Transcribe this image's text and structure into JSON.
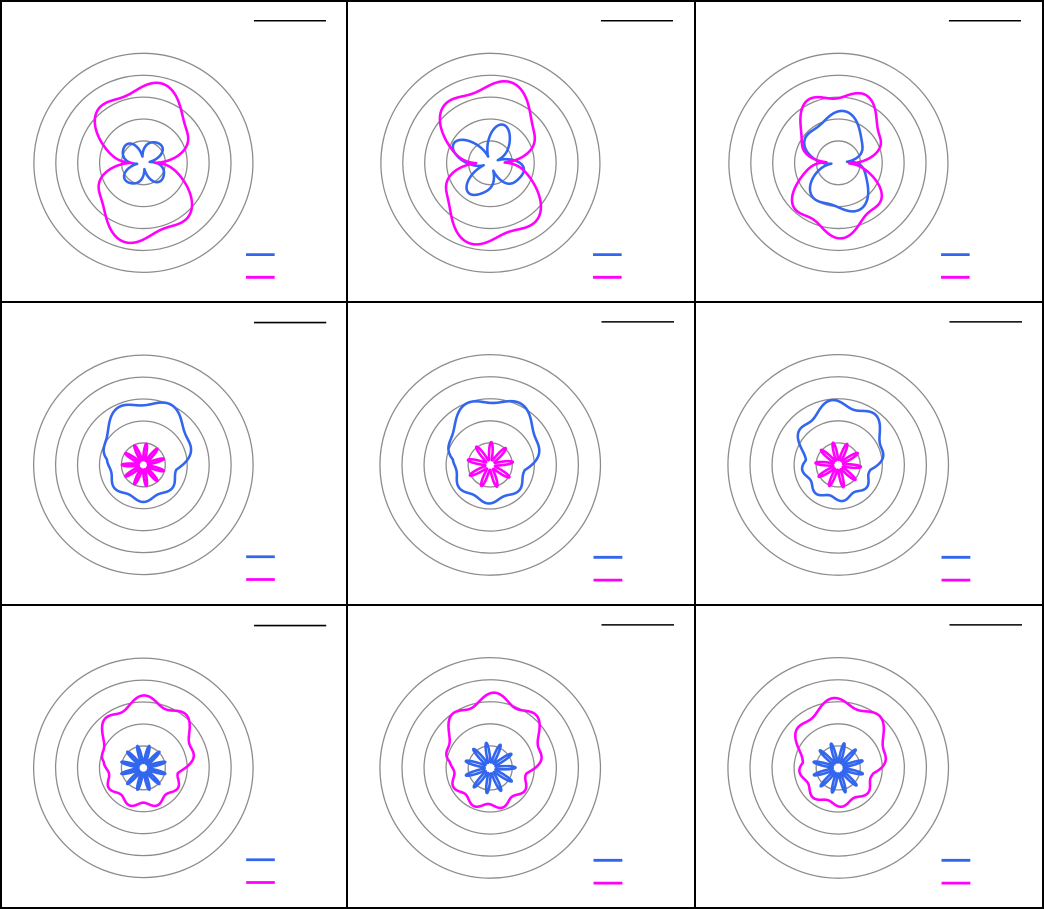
{
  "colors": {
    "series_a": "#3366ee",
    "series_b": "#ff00ff",
    "rings": "#8c8c8c",
    "frame": "#000000"
  },
  "chart_data": [
    {
      "type": "polar",
      "rings": [
        1,
        2,
        3,
        4,
        5
      ],
      "rmax": 5,
      "series": [
        {
          "color": "#3366ee",
          "shape": "clover",
          "scale": 1.25,
          "rot": 0.15,
          "lobes": 4,
          "spike": 0,
          "wobble": 0.12
        },
        {
          "color": "#ff00ff",
          "shape": "bowtie",
          "scale": 3.5,
          "rot": 0.0,
          "lobes": 6,
          "spike": 0,
          "wobble": 0.08
        }
      ]
    },
    {
      "type": "polar",
      "rings": [
        1,
        2,
        3,
        4,
        5
      ],
      "rmax": 5,
      "series": [
        {
          "color": "#3366ee",
          "shape": "clover",
          "scale": 1.7,
          "rot": 0.35,
          "lobes": 5,
          "spike": 0,
          "wobble": 0.12
        },
        {
          "color": "#ff00ff",
          "shape": "bowtie",
          "scale": 3.6,
          "rot": 0.05,
          "lobes": 6,
          "spike": 0,
          "wobble": 0.08
        }
      ]
    },
    {
      "type": "polar",
      "rings": [
        1,
        2,
        3,
        4,
        5
      ],
      "rmax": 5,
      "series": [
        {
          "color": "#3366ee",
          "shape": "bowtie",
          "scale": 2.2,
          "rot": 0.25,
          "lobes": 5,
          "spike": 0,
          "wobble": 0.1
        },
        {
          "color": "#ff00ff",
          "shape": "bowtie",
          "scale": 3.2,
          "rot": -0.1,
          "lobes": 7,
          "spike": 0,
          "wobble": 0.08
        }
      ]
    },
    {
      "type": "polar",
      "rings": [
        1,
        2,
        3,
        4,
        5
      ],
      "rmax": 5,
      "series": [
        {
          "color": "#3366ee",
          "shape": "blob",
          "scale": 2.9,
          "rot": 0.0,
          "lobes": 7,
          "spike": 0,
          "wobble": 0.06
        },
        {
          "color": "#ff00ff",
          "shape": "star",
          "scale": 0.85,
          "rot": 0.0,
          "lobes": 11,
          "spike": 1,
          "wobble": 0.3
        }
      ]
    },
    {
      "type": "polar",
      "rings": [
        1,
        2,
        3,
        4,
        5
      ],
      "rmax": 5,
      "series": [
        {
          "color": "#3366ee",
          "shape": "blob",
          "scale": 3.0,
          "rot": 0.1,
          "lobes": 7,
          "spike": 0,
          "wobble": 0.06
        },
        {
          "color": "#ff00ff",
          "shape": "star",
          "scale": 0.9,
          "rot": 0.2,
          "lobes": 9,
          "spike": 1,
          "wobble": 0.3
        }
      ]
    },
    {
      "type": "polar",
      "rings": [
        1,
        2,
        3,
        4,
        5
      ],
      "rmax": 5,
      "series": [
        {
          "color": "#3366ee",
          "shape": "blob",
          "scale": 2.8,
          "rot": 0.2,
          "lobes": 8,
          "spike": 0,
          "wobble": 0.07
        },
        {
          "color": "#ff00ff",
          "shape": "star",
          "scale": 0.9,
          "rot": 0.4,
          "lobes": 10,
          "spike": 1,
          "wobble": 0.3
        }
      ]
    },
    {
      "type": "polar",
      "rings": [
        1,
        2,
        3,
        4,
        5
      ],
      "rmax": 5,
      "series": [
        {
          "color": "#3366ee",
          "shape": "star",
          "scale": 0.9,
          "rot": 0.0,
          "lobes": 12,
          "spike": 1,
          "wobble": 0.3
        },
        {
          "color": "#ff00ff",
          "shape": "blob",
          "scale": 3.1,
          "rot": 0.0,
          "lobes": 9,
          "spike": 0,
          "wobble": 0.07
        }
      ]
    },
    {
      "type": "polar",
      "rings": [
        1,
        2,
        3,
        4,
        5
      ],
      "rmax": 5,
      "series": [
        {
          "color": "#3366ee",
          "shape": "star",
          "scale": 1.0,
          "rot": 0.3,
          "lobes": 11,
          "spike": 1,
          "wobble": 0.3
        },
        {
          "color": "#ff00ff",
          "shape": "blob",
          "scale": 3.2,
          "rot": 0.15,
          "lobes": 9,
          "spike": 0,
          "wobble": 0.07
        }
      ]
    },
    {
      "type": "polar",
      "rings": [
        1,
        2,
        3,
        4,
        5
      ],
      "rmax": 5,
      "series": [
        {
          "color": "#3366ee",
          "shape": "star",
          "scale": 1.0,
          "rot": 0.6,
          "lobes": 12,
          "spike": 1,
          "wobble": 0.3
        },
        {
          "color": "#ff00ff",
          "shape": "blob",
          "scale": 3.0,
          "rot": 0.3,
          "lobes": 8,
          "spike": 0,
          "wobble": 0.07
        }
      ]
    }
  ]
}
